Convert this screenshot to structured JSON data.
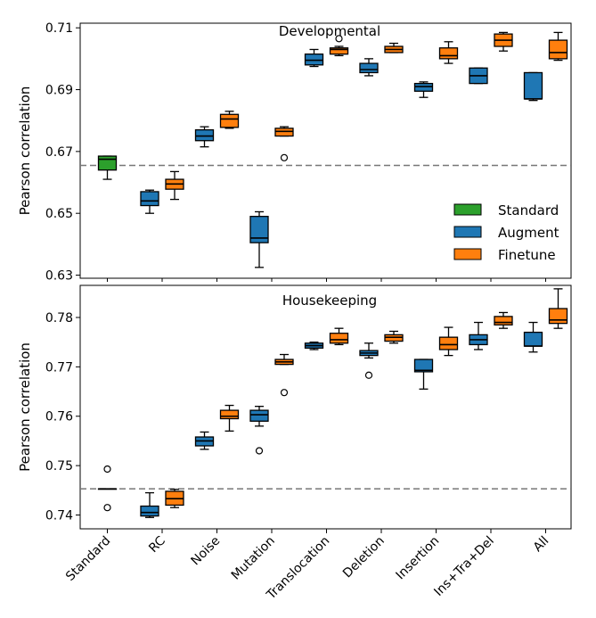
{
  "colors": {
    "Standard": "#2ca02c",
    "Augment": "#1f77b4",
    "Finetune": "#ff7f0e",
    "baseline": "#777777"
  },
  "legend": [
    {
      "name": "Standard",
      "color_key": "Standard"
    },
    {
      "name": "Augment",
      "color_key": "Augment"
    },
    {
      "name": "Finetune",
      "color_key": "Finetune"
    }
  ],
  "categories": [
    "Standard",
    "RC",
    "Noise",
    "Mutation",
    "Translocation",
    "Deletion",
    "Insertion",
    "Ins+Tra+Del",
    "All"
  ],
  "chart_data": [
    {
      "type": "box",
      "title": "Developmental",
      "ylabel": "Pearson correlation",
      "ylim": [
        0.629,
        0.7115
      ],
      "yticks": [
        0.63,
        0.65,
        0.67,
        0.69,
        0.71
      ],
      "ytick_labels": [
        "0.63",
        "0.65",
        "0.67",
        "0.69",
        "0.71"
      ],
      "baseline": 0.6655,
      "boxes": [
        {
          "category": "Standard",
          "series": "Standard",
          "whislo": 0.661,
          "q1": 0.664,
          "med": 0.6675,
          "q3": 0.6685,
          "whishi": 0.6685,
          "fliers": []
        },
        {
          "category": "RC",
          "series": "Augment",
          "whislo": 0.65,
          "q1": 0.6525,
          "med": 0.654,
          "q3": 0.657,
          "whishi": 0.6575,
          "fliers": []
        },
        {
          "category": "RC",
          "series": "Finetune",
          "whislo": 0.6545,
          "q1": 0.6578,
          "med": 0.6595,
          "q3": 0.661,
          "whishi": 0.6635,
          "fliers": []
        },
        {
          "category": "Noise",
          "series": "Augment",
          "whislo": 0.6715,
          "q1": 0.6735,
          "med": 0.675,
          "q3": 0.677,
          "whishi": 0.678,
          "fliers": []
        },
        {
          "category": "Noise",
          "series": "Finetune",
          "whislo": 0.6775,
          "q1": 0.6778,
          "med": 0.6805,
          "q3": 0.682,
          "whishi": 0.683,
          "fliers": []
        },
        {
          "category": "Mutation",
          "series": "Augment",
          "whislo": 0.6325,
          "q1": 0.6405,
          "med": 0.642,
          "q3": 0.649,
          "whishi": 0.6505,
          "fliers": []
        },
        {
          "category": "Mutation",
          "series": "Finetune",
          "whislo": 0.675,
          "q1": 0.675,
          "med": 0.6765,
          "q3": 0.6775,
          "whishi": 0.678,
          "fliers": [
            0.668
          ]
        },
        {
          "category": "Translocation",
          "series": "Augment",
          "whislo": 0.6975,
          "q1": 0.698,
          "med": 0.6995,
          "q3": 0.7015,
          "whishi": 0.703,
          "fliers": []
        },
        {
          "category": "Translocation",
          "series": "Finetune",
          "whislo": 0.701,
          "q1": 0.7015,
          "med": 0.703,
          "q3": 0.7035,
          "whishi": 0.704,
          "fliers": [
            0.7065
          ]
        },
        {
          "category": "Deletion",
          "series": "Augment",
          "whislo": 0.6945,
          "q1": 0.6955,
          "med": 0.6965,
          "q3": 0.6985,
          "whishi": 0.7,
          "fliers": []
        },
        {
          "category": "Deletion",
          "series": "Finetune",
          "whislo": 0.702,
          "q1": 0.702,
          "med": 0.703,
          "q3": 0.704,
          "whishi": 0.705,
          "fliers": []
        },
        {
          "category": "Insertion",
          "series": "Augment",
          "whislo": 0.6875,
          "q1": 0.6895,
          "med": 0.691,
          "q3": 0.692,
          "whishi": 0.6925,
          "fliers": []
        },
        {
          "category": "Insertion",
          "series": "Finetune",
          "whislo": 0.6985,
          "q1": 0.7,
          "med": 0.701,
          "q3": 0.7035,
          "whishi": 0.7055,
          "fliers": []
        },
        {
          "category": "Ins+Tra+Del",
          "series": "Augment",
          "whislo": 0.692,
          "q1": 0.692,
          "med": 0.6945,
          "q3": 0.697,
          "whishi": 0.697,
          "fliers": []
        },
        {
          "category": "Ins+Tra+Del",
          "series": "Finetune",
          "whislo": 0.7025,
          "q1": 0.704,
          "med": 0.706,
          "q3": 0.708,
          "whishi": 0.7085,
          "fliers": []
        },
        {
          "category": "All",
          "series": "Augment",
          "whislo": 0.6865,
          "q1": 0.687,
          "med": 0.687,
          "q3": 0.6955,
          "whishi": 0.6955,
          "fliers": []
        },
        {
          "category": "All",
          "series": "Finetune",
          "whislo": 0.6995,
          "q1": 0.7,
          "med": 0.702,
          "q3": 0.706,
          "whishi": 0.7085,
          "fliers": []
        }
      ]
    },
    {
      "type": "box",
      "title": "Housekeeping",
      "ylabel": "Pearson correlation",
      "ylim": [
        0.7372,
        0.7865
      ],
      "yticks": [
        0.74,
        0.75,
        0.76,
        0.77,
        0.78
      ],
      "ytick_labels": [
        "0.74",
        "0.75",
        "0.76",
        "0.77",
        "0.78"
      ],
      "baseline": 0.7453,
      "boxes": [
        {
          "category": "Standard",
          "series": "Standard",
          "whislo": 0.7453,
          "q1": 0.7453,
          "med": 0.7453,
          "q3": 0.7453,
          "whishi": 0.7453,
          "fliers": [
            0.7493,
            0.7415
          ]
        },
        {
          "category": "RC",
          "series": "Augment",
          "whislo": 0.7395,
          "q1": 0.7398,
          "med": 0.7405,
          "q3": 0.7418,
          "whishi": 0.7445,
          "fliers": []
        },
        {
          "category": "RC",
          "series": "Finetune",
          "whislo": 0.7415,
          "q1": 0.742,
          "med": 0.7433,
          "q3": 0.7448,
          "whishi": 0.7452,
          "fliers": []
        },
        {
          "category": "Noise",
          "series": "Augment",
          "whislo": 0.7533,
          "q1": 0.754,
          "med": 0.755,
          "q3": 0.7558,
          "whishi": 0.7568,
          "fliers": []
        },
        {
          "category": "Noise",
          "series": "Finetune",
          "whislo": 0.757,
          "q1": 0.7595,
          "med": 0.76,
          "q3": 0.7612,
          "whishi": 0.7622,
          "fliers": []
        },
        {
          "category": "Mutation",
          "series": "Augment",
          "whislo": 0.758,
          "q1": 0.759,
          "med": 0.7603,
          "q3": 0.7612,
          "whishi": 0.762,
          "fliers": [
            0.753
          ]
        },
        {
          "category": "Mutation",
          "series": "Finetune",
          "whislo": 0.7705,
          "q1": 0.7705,
          "med": 0.771,
          "q3": 0.7715,
          "whishi": 0.7725,
          "fliers": [
            0.7648
          ]
        },
        {
          "category": "Translocation",
          "series": "Augment",
          "whislo": 0.7735,
          "q1": 0.7738,
          "med": 0.7743,
          "q3": 0.7748,
          "whishi": 0.775,
          "fliers": []
        },
        {
          "category": "Translocation",
          "series": "Finetune",
          "whislo": 0.7745,
          "q1": 0.7748,
          "med": 0.7755,
          "q3": 0.7768,
          "whishi": 0.7778,
          "fliers": []
        },
        {
          "category": "Deletion",
          "series": "Augment",
          "whislo": 0.7718,
          "q1": 0.7723,
          "med": 0.7728,
          "q3": 0.7733,
          "whishi": 0.7748,
          "fliers": [
            0.7683
          ]
        },
        {
          "category": "Deletion",
          "series": "Finetune",
          "whislo": 0.7748,
          "q1": 0.7752,
          "med": 0.776,
          "q3": 0.7765,
          "whishi": 0.7772,
          "fliers": []
        },
        {
          "category": "Insertion",
          "series": "Augment",
          "whislo": 0.7655,
          "q1": 0.769,
          "med": 0.7693,
          "q3": 0.7715,
          "whishi": 0.7715,
          "fliers": []
        },
        {
          "category": "Insertion",
          "series": "Finetune",
          "whislo": 0.7723,
          "q1": 0.7735,
          "med": 0.7745,
          "q3": 0.776,
          "whishi": 0.778,
          "fliers": []
        },
        {
          "category": "Ins+Tra+Del",
          "series": "Augment",
          "whislo": 0.7735,
          "q1": 0.7745,
          "med": 0.7755,
          "q3": 0.7765,
          "whishi": 0.779,
          "fliers": []
        },
        {
          "category": "Ins+Tra+Del",
          "series": "Finetune",
          "whislo": 0.7778,
          "q1": 0.7785,
          "med": 0.779,
          "q3": 0.7802,
          "whishi": 0.781,
          "fliers": []
        },
        {
          "category": "All",
          "series": "Augment",
          "whislo": 0.773,
          "q1": 0.7742,
          "med": 0.7742,
          "q3": 0.777,
          "whishi": 0.779,
          "fliers": []
        },
        {
          "category": "All",
          "series": "Finetune",
          "whislo": 0.7778,
          "q1": 0.7788,
          "med": 0.7795,
          "q3": 0.7818,
          "whishi": 0.7858,
          "fliers": []
        }
      ]
    }
  ]
}
